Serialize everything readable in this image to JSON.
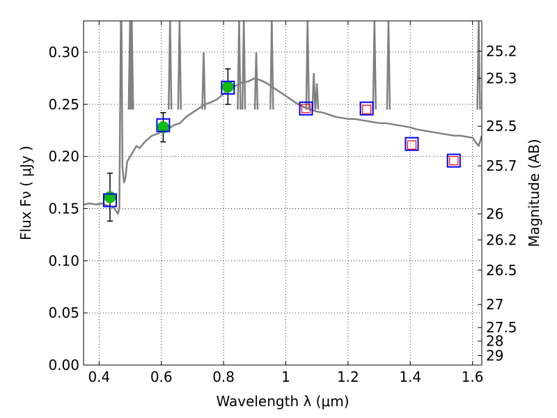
{
  "chart_data": {
    "type": "scatter",
    "title": "",
    "xlabel": "Wavelength  λ (μm)",
    "ylabel": "Flux  Fν  ( μJy )",
    "y2label": "Magnitude (AB)",
    "xlim": [
      0.35,
      1.63
    ],
    "ylim": [
      0.0,
      0.33
    ],
    "grid": true,
    "x_ticks": [
      0.4,
      0.6,
      0.8,
      1.0,
      1.2,
      1.4,
      1.6
    ],
    "x_tick_labels": [
      "0.4",
      "0.6",
      "0.8",
      "1",
      "1.2",
      "1.4",
      "1.6"
    ],
    "y_ticks": [
      0.0,
      0.05,
      0.1,
      0.15,
      0.2,
      0.25,
      0.3
    ],
    "y_tick_labels": [
      "0.00",
      "0.05",
      "0.10",
      "0.15",
      "0.20",
      "0.25",
      "0.30"
    ],
    "y2_ticks": [
      {
        "label": "25.2",
        "flux": 0.301
      },
      {
        "label": "25.3",
        "flux": 0.275
      },
      {
        "label": "25.5",
        "flux": 0.229
      },
      {
        "label": "25.7",
        "flux": 0.191
      },
      {
        "label": "26",
        "flux": 0.145
      },
      {
        "label": "26.2",
        "flux": 0.12
      },
      {
        "label": "26.5",
        "flux": 0.091
      },
      {
        "label": "27",
        "flux": 0.058
      },
      {
        "label": "27.5",
        "flux": 0.036
      },
      {
        "label": "28",
        "flux": 0.023
      },
      {
        "label": "29",
        "flux": 0.009
      }
    ],
    "series": [
      {
        "name": "model spectrum",
        "kind": "line",
        "color": "#808080",
        "x": [
          0.35,
          0.37,
          0.39,
          0.41,
          0.425,
          0.44,
          0.45,
          0.46,
          0.465,
          0.47,
          0.472,
          0.475,
          0.48,
          0.485,
          0.49,
          0.5,
          0.51,
          0.52,
          0.53,
          0.55,
          0.57,
          0.59,
          0.61,
          0.62,
          0.63,
          0.64,
          0.66,
          0.68,
          0.7,
          0.72,
          0.74,
          0.76,
          0.78,
          0.8,
          0.82,
          0.84,
          0.86,
          0.88,
          0.9,
          0.92,
          0.94,
          0.96,
          0.98,
          1.0,
          1.02,
          1.04,
          1.06,
          1.08,
          1.1,
          1.12,
          1.14,
          1.16,
          1.18,
          1.2,
          1.22,
          1.24,
          1.26,
          1.28,
          1.3,
          1.32,
          1.34,
          1.36,
          1.38,
          1.4,
          1.42,
          1.44,
          1.46,
          1.48,
          1.5,
          1.52,
          1.54,
          1.56,
          1.58,
          1.6,
          1.62,
          1.63
        ],
        "y": [
          0.154,
          0.155,
          0.154,
          0.155,
          0.153,
          0.152,
          0.15,
          0.145,
          0.15,
          0.33,
          0.33,
          0.19,
          0.175,
          0.18,
          0.195,
          0.2,
          0.205,
          0.21,
          0.208,
          0.215,
          0.22,
          0.222,
          0.226,
          0.23,
          0.228,
          0.23,
          0.232,
          0.238,
          0.242,
          0.246,
          0.25,
          0.252,
          0.255,
          0.26,
          0.265,
          0.268,
          0.271,
          0.272,
          0.275,
          0.273,
          0.27,
          0.266,
          0.262,
          0.258,
          0.254,
          0.25,
          0.247,
          0.245,
          0.243,
          0.242,
          0.24,
          0.238,
          0.237,
          0.236,
          0.236,
          0.235,
          0.234,
          0.233,
          0.232,
          0.232,
          0.231,
          0.23,
          0.229,
          0.228,
          0.226,
          0.225,
          0.224,
          0.223,
          0.222,
          0.221,
          0.22,
          0.22,
          0.219,
          0.218,
          0.21,
          0.22
        ]
      },
      {
        "name": "emission lines",
        "kind": "spikes",
        "color": "#808080",
        "x": [
          0.4995,
          0.505,
          0.628,
          0.6585,
          0.736,
          0.85,
          0.865,
          0.905,
          0.955,
          1.07,
          1.09,
          1.1,
          1.285,
          1.33,
          1.62
        ],
        "y": [
          0.33,
          0.33,
          0.33,
          0.33,
          0.3,
          0.33,
          0.33,
          0.3,
          0.33,
          0.33,
          0.28,
          0.27,
          0.33,
          0.33,
          0.33
        ]
      },
      {
        "name": "observed photometry",
        "kind": "points",
        "marker": "circle",
        "color": "#11bb11",
        "x": [
          0.435,
          0.606,
          0.814
        ],
        "y": [
          0.161,
          0.228,
          0.267
        ],
        "yerr": [
          0.023,
          0.014,
          0.017
        ]
      },
      {
        "name": "model photometry",
        "kind": "points",
        "marker": "square",
        "color": "#0000ff",
        "x": [
          0.435,
          0.606,
          0.814,
          1.065,
          1.26,
          1.405,
          1.54
        ],
        "y": [
          0.158,
          0.23,
          0.266,
          0.246,
          0.246,
          0.212,
          0.196
        ]
      },
      {
        "name": "upper limits",
        "kind": "points",
        "marker": "square",
        "color": "#ff0000",
        "x": [
          1.065,
          1.26,
          1.405,
          1.54
        ],
        "y": [
          0.246,
          0.245,
          0.211,
          0.196
        ]
      }
    ]
  }
}
